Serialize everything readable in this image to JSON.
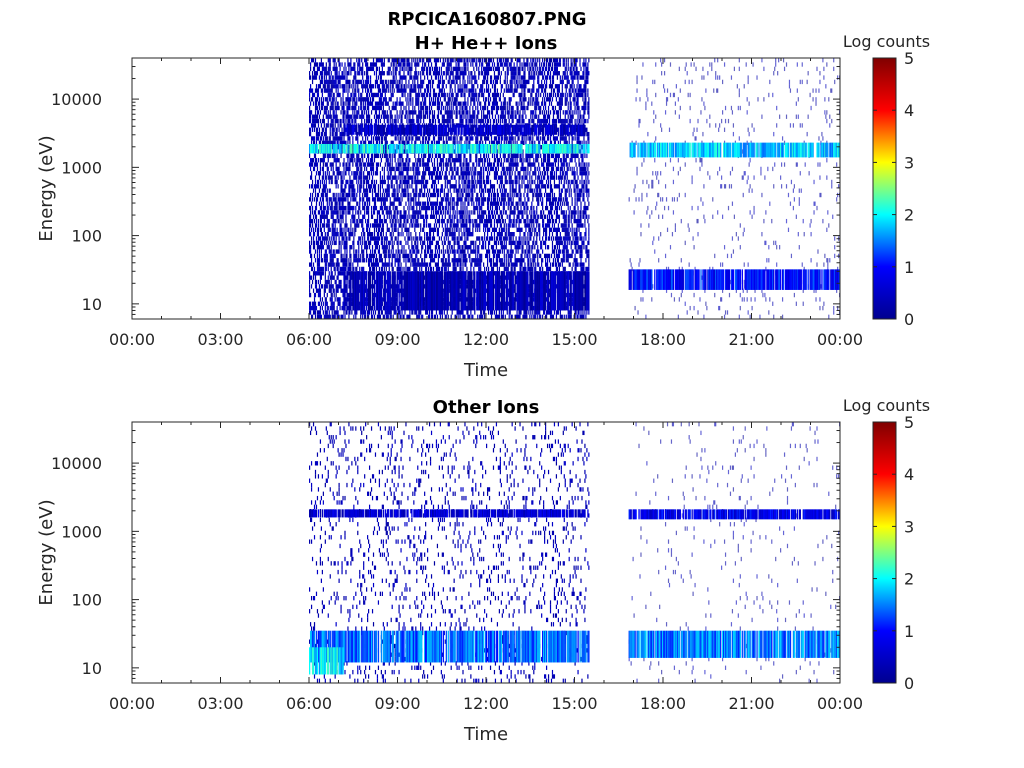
{
  "figure": {
    "title_line1": "RPCICA160807.PNG"
  },
  "colormap": {
    "name": "jet",
    "stops": [
      "#00008f",
      "#0000ff",
      "#00ffff",
      "#ffff00",
      "#ff0000",
      "#800000"
    ]
  },
  "chart_data": [
    {
      "type": "heatmap",
      "title": "H+ He++ Ions",
      "xlabel": "Time",
      "ylabel": "Energy (eV)",
      "x_scale": "time",
      "xlim": [
        "00:00",
        "24:00"
      ],
      "x_ticks": [
        "00:00",
        "03:00",
        "06:00",
        "09:00",
        "12:00",
        "15:00",
        "18:00",
        "21:00",
        "00:00"
      ],
      "y_scale": "log",
      "ylim": [
        6,
        40000
      ],
      "y_ticks": [
        10,
        100,
        1000,
        10000
      ],
      "y_tick_labels": [
        "10",
        "100",
        "1000",
        "10000"
      ],
      "colorbar": {
        "label": "Log counts",
        "range": [
          0,
          5
        ],
        "ticks": [
          "0",
          "1",
          "2",
          "3",
          "4",
          "5"
        ]
      },
      "data_coverage": [
        [
          "06:00",
          "15:30"
        ],
        [
          "16:50",
          "24:00"
        ]
      ],
      "features": [
        {
          "time": [
            "06:00",
            "15:30"
          ],
          "energy_eV": [
            1600,
            2200
          ],
          "log_counts": 2.0
        },
        {
          "time": [
            "07:10",
            "15:30"
          ],
          "energy_eV": [
            3000,
            4200
          ],
          "log_counts": 0.5
        },
        {
          "time": [
            "07:10",
            "15:30"
          ],
          "energy_eV": [
            8,
            30
          ],
          "log_counts": 0.3
        },
        {
          "time": [
            "16:50",
            "24:00"
          ],
          "energy_eV": [
            1400,
            2300
          ],
          "log_counts": 1.8
        },
        {
          "time": [
            "16:50",
            "24:00"
          ],
          "energy_eV": [
            16,
            32
          ],
          "log_counts": 1.0
        }
      ]
    },
    {
      "type": "heatmap",
      "title": "Other Ions",
      "xlabel": "Time",
      "ylabel": "Energy (eV)",
      "x_scale": "time",
      "xlim": [
        "00:00",
        "24:00"
      ],
      "x_ticks": [
        "00:00",
        "03:00",
        "06:00",
        "09:00",
        "12:00",
        "15:00",
        "18:00",
        "21:00",
        "00:00"
      ],
      "y_scale": "log",
      "ylim": [
        6,
        40000
      ],
      "y_ticks": [
        10,
        100,
        1000,
        10000
      ],
      "y_tick_labels": [
        "10",
        "100",
        "1000",
        "10000"
      ],
      "colorbar": {
        "label": "Log counts",
        "range": [
          0,
          5
        ],
        "ticks": [
          "0",
          "1",
          "2",
          "3",
          "4",
          "5"
        ]
      },
      "data_coverage": [
        [
          "06:00",
          "15:30"
        ],
        [
          "16:50",
          "24:00"
        ]
      ],
      "features": [
        {
          "time": [
            "06:00",
            "15:30"
          ],
          "energy_eV": [
            1600,
            2100
          ],
          "log_counts": 0.6
        },
        {
          "time": [
            "06:00",
            "15:30"
          ],
          "energy_eV": [
            12,
            35
          ],
          "log_counts": 1.4
        },
        {
          "time": [
            "06:00",
            "07:10"
          ],
          "energy_eV": [
            8,
            20
          ],
          "log_counts": 1.9
        },
        {
          "time": [
            "16:50",
            "24:00"
          ],
          "energy_eV": [
            1500,
            2100
          ],
          "log_counts": 0.8
        },
        {
          "time": [
            "16:50",
            "24:00"
          ],
          "energy_eV": [
            14,
            35
          ],
          "log_counts": 1.5
        }
      ]
    }
  ]
}
